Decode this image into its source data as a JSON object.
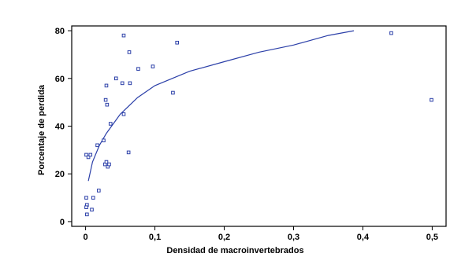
{
  "chart_data": {
    "type": "scatter",
    "title": "",
    "xlabel": "Densidad de macroinvertebrados",
    "ylabel": "Porcentaje de perdida",
    "xlim": [
      -0.02,
      0.52
    ],
    "ylim": [
      -2,
      82
    ],
    "x_ticks": [
      0,
      0.1,
      0.2,
      0.3,
      0.4,
      0.5
    ],
    "x_tick_labels": [
      "0",
      "0,1",
      "0,2",
      "0,3",
      "0,4",
      "0,5"
    ],
    "y_ticks": [
      0,
      20,
      40,
      60,
      80
    ],
    "y_tick_labels": [
      "0",
      "20",
      "40",
      "60",
      "80"
    ],
    "grid": false,
    "marker_color": "#2b3fa8",
    "curve_color": "#2b3fa8",
    "series": [
      {
        "type": "scatter",
        "points": [
          [
            0.001,
            28
          ],
          [
            0.004,
            27
          ],
          [
            0.007,
            28
          ],
          [
            0.001,
            10
          ],
          [
            0.002,
            7
          ],
          [
            0.001,
            6
          ],
          [
            0.002,
            3
          ],
          [
            0.009,
            5
          ],
          [
            0.011,
            10
          ],
          [
            0.019,
            13
          ],
          [
            0.017,
            32
          ],
          [
            0.026,
            34
          ],
          [
            0.029,
            51
          ],
          [
            0.031,
            49
          ],
          [
            0.03,
            57
          ],
          [
            0.028,
            24
          ],
          [
            0.03,
            25
          ],
          [
            0.032,
            23
          ],
          [
            0.034,
            24
          ],
          [
            0.036,
            41
          ],
          [
            0.044,
            60
          ],
          [
            0.053,
            58
          ],
          [
            0.055,
            45
          ],
          [
            0.055,
            78
          ],
          [
            0.063,
            71
          ],
          [
            0.064,
            58
          ],
          [
            0.062,
            29
          ],
          [
            0.076,
            64
          ],
          [
            0.097,
            65
          ],
          [
            0.126,
            54
          ],
          [
            0.132,
            75
          ],
          [
            0.441,
            79
          ],
          [
            0.499,
            51
          ]
        ]
      },
      {
        "type": "line",
        "x": [
          0.004,
          0.01,
          0.02,
          0.03,
          0.05,
          0.075,
          0.1,
          0.15,
          0.2,
          0.25,
          0.3,
          0.35,
          0.387
        ],
        "y": [
          17,
          25,
          32,
          37,
          45,
          52,
          57,
          63,
          67,
          71,
          74,
          78,
          80
        ]
      }
    ]
  }
}
